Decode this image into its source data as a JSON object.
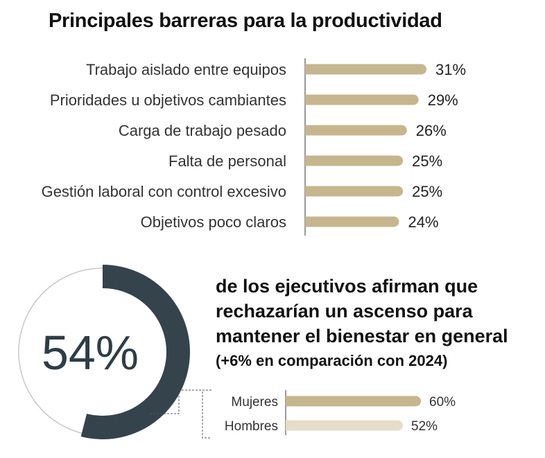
{
  "title": "Principales barreras para la productividad",
  "colors": {
    "bar": "#c5b68e",
    "bar_light": "#e6ddc8",
    "donut_fill": "#34434c",
    "donut_track": "#c8c8c8",
    "axis": "#333333"
  },
  "chart_data": [
    {
      "type": "bar",
      "orientation": "horizontal",
      "title": "Principales barreras para la productividad",
      "categories": [
        "Trabajo aislado entre equipos",
        "Prioridades u objetivos cambiantes",
        "Carga de trabajo pesado",
        "Falta de personal",
        "Gestión laboral con control excesivo",
        "Objetivos poco claros"
      ],
      "values": [
        31,
        29,
        26,
        25,
        25,
        24
      ],
      "value_labels": [
        "31%",
        "29%",
        "26%",
        "25%",
        "25%",
        "24%"
      ],
      "unit": "%",
      "xlim": [
        0,
        40
      ]
    },
    {
      "type": "pie",
      "style": "donut",
      "values": [
        54,
        46
      ],
      "label": "54%"
    },
    {
      "type": "bar",
      "orientation": "horizontal",
      "categories": [
        "Mujeres",
        "Hombres"
      ],
      "values": [
        60,
        52
      ],
      "value_labels": [
        "60%",
        "52%"
      ],
      "unit": "%",
      "xlim": [
        0,
        80
      ]
    }
  ],
  "stat": {
    "headline": "de los ejecutivos afirman que rechazarían un ascenso para mantener el bienestar en general",
    "note": "(+6% en comparación con 2024)"
  }
}
